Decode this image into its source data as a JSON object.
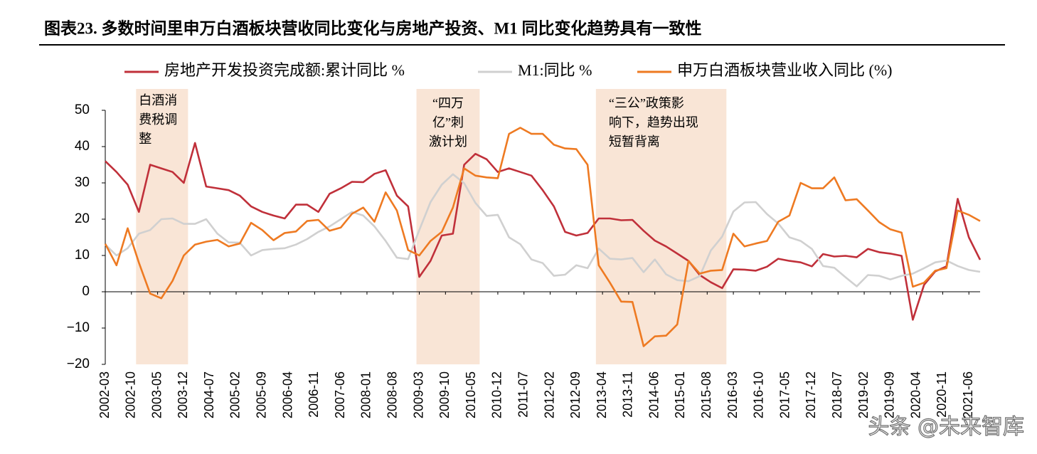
{
  "chart_data": {
    "type": "line",
    "title": "图表23.  多数时间里申万白酒板块营收同比变化与房地产投资、M1 同比变化趋势具有一致性",
    "x": [
      "2002-03",
      "2002-06",
      "2002-09",
      "2002-12",
      "2003-03",
      "2003-06",
      "2003-09",
      "2003-12",
      "2004-03",
      "2004-06",
      "2004-09",
      "2004-12",
      "2005-03",
      "2005-06",
      "2005-09",
      "2005-12",
      "2006-03",
      "2006-06",
      "2006-09",
      "2006-12",
      "2007-03",
      "2007-06",
      "2007-09",
      "2007-12",
      "2008-03",
      "2008-06",
      "2008-09",
      "2008-12",
      "2009-03",
      "2009-06",
      "2009-09",
      "2009-12",
      "2010-03",
      "2010-06",
      "2010-09",
      "2010-12",
      "2011-03",
      "2011-06",
      "2011-09",
      "2011-12",
      "2012-03",
      "2012-06",
      "2012-09",
      "2012-12",
      "2013-03",
      "2013-06",
      "2013-09",
      "2013-12",
      "2014-03",
      "2014-06",
      "2014-09",
      "2014-12",
      "2015-03",
      "2015-06",
      "2015-09",
      "2015-12",
      "2016-03",
      "2016-06",
      "2016-09",
      "2016-12",
      "2017-03",
      "2017-06",
      "2017-09",
      "2017-12",
      "2018-03",
      "2018-06",
      "2018-09",
      "2018-12",
      "2019-03",
      "2019-06",
      "2019-09",
      "2019-12",
      "2020-03",
      "2020-06",
      "2020-09",
      "2020-12",
      "2021-03",
      "2021-06",
      "2021-09"
    ],
    "series": [
      {
        "name": "房地产开发投资完成额:累计同比 %",
        "color": "#c0303a",
        "values": [
          36,
          33,
          29.5,
          22,
          35,
          34,
          33,
          30,
          41,
          29,
          28.5,
          28,
          26.5,
          23.5,
          22,
          21,
          20.2,
          24,
          24,
          22,
          27,
          28.5,
          30.3,
          30.2,
          32.5,
          33.5,
          26.5,
          23.5,
          4.1,
          8.5,
          15.5,
          16,
          35,
          38,
          36.5,
          33,
          34,
          33,
          32,
          28,
          23.5,
          16.5,
          15.5,
          16.2,
          20.2,
          20.2,
          19.7,
          19.8,
          16.8,
          14.1,
          12.5,
          10.5,
          8.5,
          4.6,
          2.6,
          1,
          6.2,
          6.1,
          5.8,
          6.9,
          9.1,
          8.5,
          8.1,
          7,
          10.4,
          9.7,
          9.9,
          9.5,
          11.8,
          10.9,
          10.5,
          9.9,
          -7.7,
          1.9,
          5.6,
          7,
          25.6,
          15,
          8.8
        ]
      },
      {
        "name": "M1:同比 %",
        "color": "#d0d0d0",
        "values": [
          13,
          10,
          12,
          16,
          17,
          20,
          20.2,
          18.7,
          18.7,
          20,
          16,
          13.6,
          13.5,
          10,
          11.5,
          11.8,
          12,
          13,
          14.5,
          16.5,
          18,
          20,
          22,
          21,
          18,
          14,
          9.4,
          9,
          17,
          24.7,
          29.5,
          32.4,
          29.9,
          24.5,
          20.9,
          21.2,
          15,
          13.1,
          8.9,
          7.9,
          4.4,
          4.7,
          7.3,
          6.5,
          11.9,
          9.1,
          8.9,
          9.3,
          5.4,
          8.9,
          4.8,
          3.2,
          2.9,
          4.3,
          11.4,
          15.2,
          22.1,
          24.6,
          24.7,
          21.4,
          18.8,
          15,
          14,
          11.8,
          7.1,
          6.6,
          4,
          1.5,
          4.6,
          4.4,
          3.4,
          4.4,
          5,
          6.5,
          8.1,
          8.6,
          7.1,
          6,
          5.5
        ]
      },
      {
        "name": "申万白酒板块营业收入同比 (%)",
        "color": "#ee7a22",
        "values": [
          13.2,
          7.3,
          17.5,
          8,
          -0.5,
          -1.8,
          3,
          10,
          13,
          13.8,
          14.3,
          12.5,
          13.3,
          19,
          17,
          14.2,
          16.2,
          16.6,
          19.5,
          19.8,
          16.8,
          17.7,
          21.5,
          23.2,
          19.3,
          27.4,
          22.4,
          11.5,
          10,
          14,
          16.5,
          23.2,
          34,
          32,
          31.5,
          31.3,
          43.5,
          45.2,
          43.5,
          43.5,
          40.5,
          39.5,
          39.3,
          35,
          7.3,
          2.5,
          -2.7,
          -2.8,
          -15,
          -12.3,
          -12.1,
          -9,
          8.5,
          5,
          5.8,
          6,
          16,
          12.5,
          13.3,
          14,
          19.3,
          21,
          30,
          28.5,
          28.5,
          31.5,
          25.2,
          25.5,
          22.4,
          19.2,
          17.2,
          16.3,
          1.4,
          2.5,
          5.8,
          6.5,
          22.4,
          21.2,
          19.5
        ]
      }
    ],
    "xlim": [
      "2002-03",
      "2021-09"
    ],
    "xticks": [
      "2002-03",
      "2002-10",
      "2003-05",
      "2003-12",
      "2004-07",
      "2005-02",
      "2005-09",
      "2006-04",
      "2006-11",
      "2007-06",
      "2008-01",
      "2008-08",
      "2009-03",
      "2009-10",
      "2010-05",
      "2010-12",
      "2011-07",
      "2012-02",
      "2012-09",
      "2013-04",
      "2013-11",
      "2014-06",
      "2015-01",
      "2015-08",
      "2016-03",
      "2016-10",
      "2017-05",
      "2017-12",
      "2018-07",
      "2019-02",
      "2019-09",
      "2020-04",
      "2020-11",
      "2021-06"
    ],
    "ylim": [
      -20,
      50
    ],
    "yticks": [
      {
        "value": -20,
        "label": "−20"
      },
      {
        "value": -10,
        "label": "−10"
      },
      0,
      10,
      20,
      30,
      40,
      50
    ],
    "shaded": [
      {
        "from": "2002-12",
        "to": "2003-12",
        "color": "#f9e5d6",
        "lines": [
          "白酒消",
          "费税调",
          "整"
        ],
        "align": "left"
      },
      {
        "from": "2009-03",
        "to": "2010-06",
        "color": "#f9e5d6",
        "lines": [
          "“四万",
          "亿”刺",
          "激计划"
        ],
        "align": "center"
      },
      {
        "from": "2013-03",
        "to": "2015-12",
        "color": "#f9e5d6",
        "lines": [
          "“三公”政策影",
          "响下，趋势出现",
          "短暂背离"
        ],
        "align": "left"
      }
    ],
    "legend": "top",
    "watermark": "头条 @未来智库"
  }
}
